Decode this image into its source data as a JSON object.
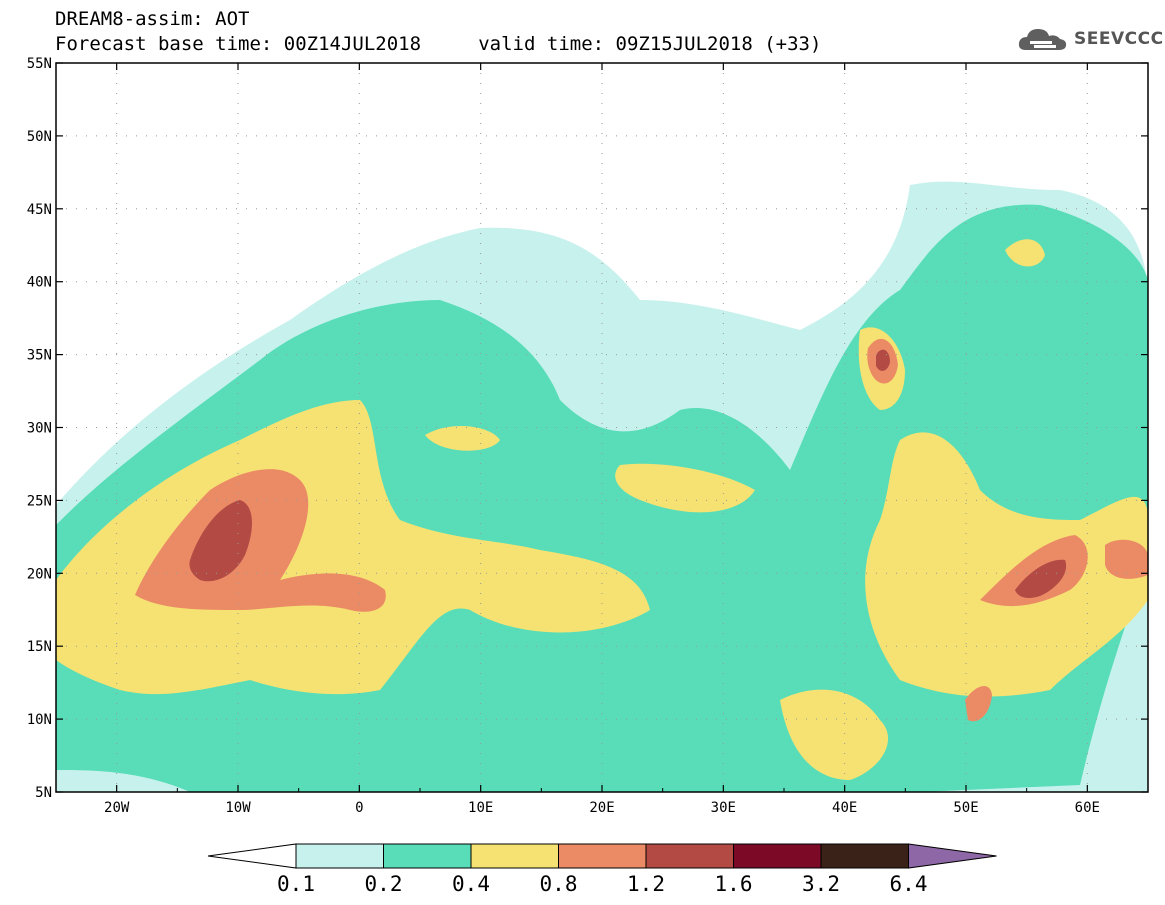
{
  "header": {
    "line1": "DREAM8-assim: AOT",
    "line2": "Forecast base time: 00Z14JUL2018     valid time: 09Z15JUL2018 (+33)"
  },
  "logo": {
    "text": "SEEVCCC",
    "icon": "cloud-icon"
  },
  "axes": {
    "lat_labels": [
      "55N",
      "50N",
      "45N",
      "40N",
      "35N",
      "30N",
      "25N",
      "20N",
      "15N",
      "10N",
      "5N"
    ],
    "lon_labels": [
      "20W",
      "10W",
      "0",
      "10E",
      "20E",
      "30E",
      "40E",
      "50E",
      "60E"
    ],
    "lon_range": [
      -25,
      65
    ],
    "lat_range": [
      5,
      55
    ]
  },
  "colorbar": {
    "levels": [
      "0.1",
      "0.2",
      "0.4",
      "0.8",
      "1.2",
      "1.6",
      "3.2",
      "6.4"
    ],
    "colors": [
      "#ffffff",
      "#c6f1ec",
      "#58ddb8",
      "#f6e272",
      "#eb8b66",
      "#b34b44",
      "#7c0a27",
      "#3b2219",
      "#8e68a6"
    ]
  },
  "colors": {
    "c1": "#c6f1ec",
    "c2": "#58ddb8",
    "c3": "#f6e272",
    "c4": "#eb8b66",
    "c5": "#b34b44",
    "c6": "#7c0a27"
  }
}
